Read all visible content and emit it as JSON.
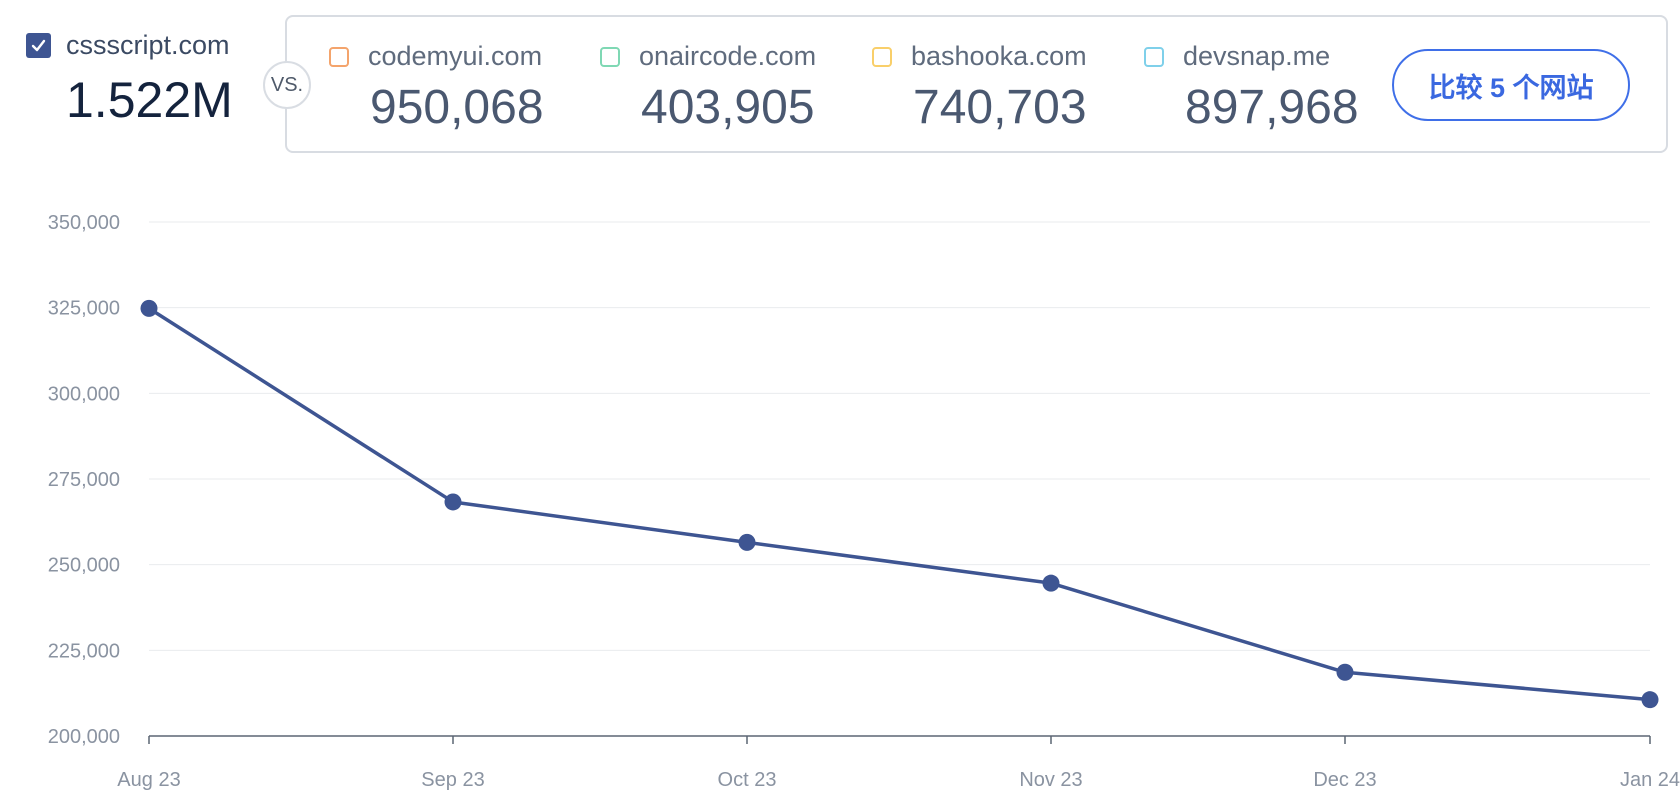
{
  "primary": {
    "name": "cssscript.com",
    "value": "1.522M",
    "checked": true,
    "color": "#3e5592"
  },
  "vs_label": "VS.",
  "competitors": [
    {
      "name": "codemyui.com",
      "value": "950,068",
      "color": "#f4a46c"
    },
    {
      "name": "onaircode.com",
      "value": "403,905",
      "color": "#7fd8b4"
    },
    {
      "name": "bashooka.com",
      "value": "740,703",
      "color": "#f9cf6a"
    },
    {
      "name": "devsnap.me",
      "value": "897,968",
      "color": "#7fd0ea"
    }
  ],
  "compare_button": {
    "label": "比较 5 个网站"
  },
  "chart_data": {
    "type": "line",
    "categories": [
      "Aug 23",
      "Sep 23",
      "Oct 23",
      "Nov 23",
      "Dec 23",
      "Jan 24"
    ],
    "series": [
      {
        "name": "cssscript.com",
        "color": "#3e5592",
        "values": [
          324800,
          268300,
          256500,
          244600,
          218600,
          210600
        ]
      }
    ],
    "ylim": [
      200000,
      350000
    ],
    "yticks": [
      "200,000",
      "225,000",
      "250,000",
      "275,000",
      "300,000",
      "325,000",
      "350,000"
    ],
    "ytick_values": [
      200000,
      225000,
      250000,
      275000,
      300000,
      325000,
      350000
    ],
    "grid": true,
    "title": "",
    "xlabel": "",
    "ylabel": ""
  }
}
